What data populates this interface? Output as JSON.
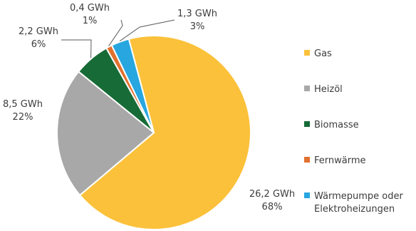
{
  "chart_data": {
    "type": "pie",
    "title": "",
    "slices": [
      {
        "name": "Gas",
        "value_gwh": "26,2 GWh",
        "percent": "68%",
        "share": 0.68,
        "color": "#fbc13a"
      },
      {
        "name": "Heizöl",
        "value_gwh": "8,5 GWh",
        "percent": "22%",
        "share": 0.22,
        "color": "#a8a8a8"
      },
      {
        "name": "Biomasse",
        "value_gwh": "2,2 GWh",
        "percent": "6%",
        "share": 0.06,
        "color": "#176b36"
      },
      {
        "name": "Fernwärme",
        "value_gwh": "0,4 GWh",
        "percent": "1%",
        "share": 0.01,
        "color": "#e2702e"
      },
      {
        "name": "Wärmepumpe oder Elektroheizungen",
        "legend_lines": [
          "Wärmepumpe oder",
          "Elektroheizungen"
        ],
        "value_gwh": "1,3 GWh",
        "percent": "3%",
        "share": 0.03,
        "color": "#27a6e0"
      }
    ],
    "legend_position": "right"
  }
}
